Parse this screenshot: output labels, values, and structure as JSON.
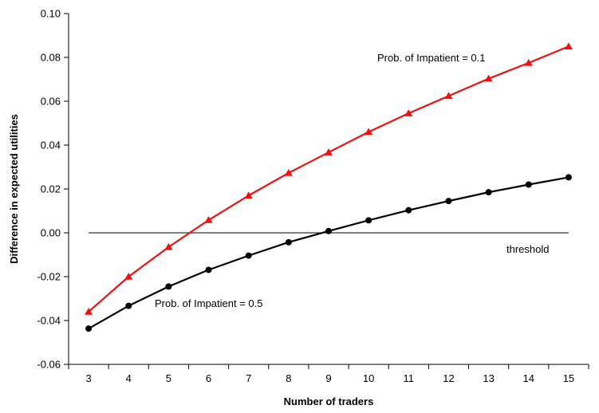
{
  "chart_data": {
    "type": "line",
    "xlabel": "Number of traders",
    "ylabel": "Difference in expected utilities",
    "x": [
      3,
      4,
      5,
      6,
      7,
      8,
      9,
      10,
      11,
      12,
      13,
      14,
      15
    ],
    "xlim": [
      2.5,
      15.5
    ],
    "ylim": [
      -0.06,
      0.1
    ],
    "yticks": [
      "-0.06",
      "-0.04",
      "-0.02",
      "0.00",
      "0.02",
      "0.04",
      "0.06",
      "0.08",
      "0.10"
    ],
    "grid": false,
    "legend": "none",
    "series": [
      {
        "name": "Prob. of Impatient = 0.1",
        "color": "#ee1111",
        "marker": "triangle",
        "values": [
          -0.036,
          -0.02,
          -0.0065,
          0.0058,
          0.017,
          0.0273,
          0.0367,
          0.046,
          0.0545,
          0.0624,
          0.0703,
          0.0775,
          0.085
        ]
      },
      {
        "name": "Prob. of Impatient = 0.5",
        "color": "#000000",
        "marker": "circle",
        "values": [
          -0.0437,
          -0.0333,
          -0.0245,
          -0.0169,
          -0.0104,
          -0.0043,
          0.0008,
          0.0057,
          0.0103,
          0.0145,
          0.0185,
          0.022,
          0.0253
        ]
      }
    ],
    "threshold": {
      "label": "threshold",
      "y": 0.0
    }
  }
}
